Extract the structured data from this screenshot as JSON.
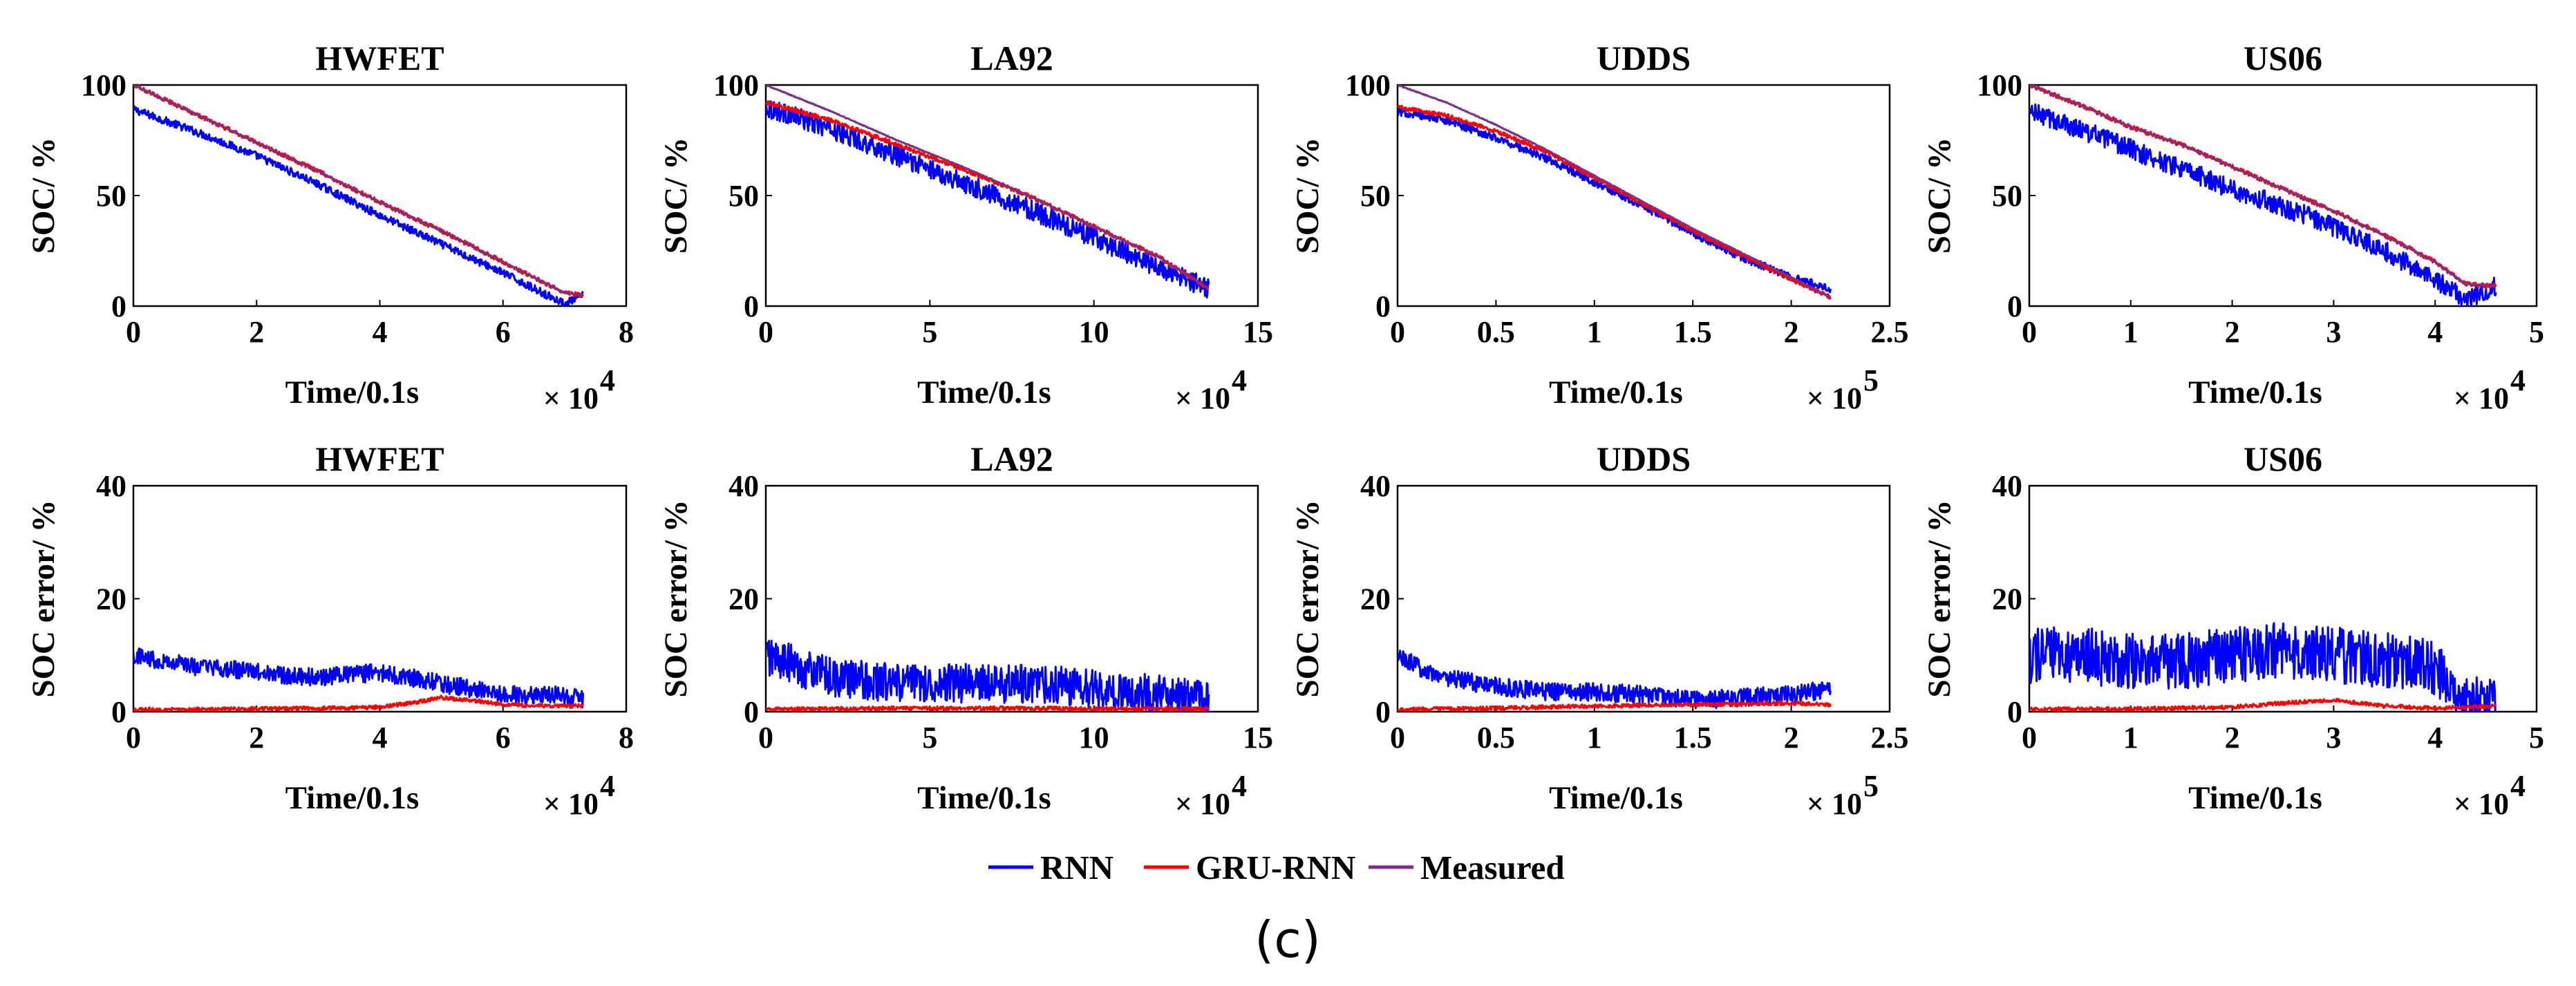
{
  "figure": {
    "caption": "(c)",
    "legend": [
      {
        "name": "RNN",
        "color": "#0000ff"
      },
      {
        "name": "GRU-RNN",
        "color": "#ff0000"
      },
      {
        "name": "Measured",
        "color": "#7e2f8e"
      }
    ]
  },
  "chart_data": [
    {
      "type": "line",
      "title": "HWFET",
      "xlabel": "Time/0.1s",
      "ylabel": "SOC/ %",
      "x_multiplier": "× 10",
      "x_exponent": "4",
      "xlim": [
        0,
        8
      ],
      "ylim": [
        0,
        100
      ],
      "xticks": [
        "0",
        "2",
        "4",
        "6",
        "8"
      ],
      "yticks": [
        "0",
        "50",
        "100"
      ],
      "series": [
        {
          "name": "Measured",
          "x": [
            0,
            1,
            2,
            3,
            4,
            5,
            6,
            7,
            7.3
          ],
          "y": [
            100,
            87,
            74,
            61,
            47,
            34,
            20,
            6,
            5
          ]
        },
        {
          "name": "GRU-RNN",
          "x": [
            0,
            1,
            2,
            3,
            4,
            5,
            6,
            7,
            7.3
          ],
          "y": [
            100,
            87,
            74,
            61,
            47,
            34,
            20,
            6,
            5
          ]
        },
        {
          "name": "RNN",
          "x": [
            0,
            1,
            2,
            3,
            4,
            5,
            6,
            7,
            7.3
          ],
          "y": [
            89,
            79,
            68,
            55,
            41,
            28,
            15,
            1,
            5
          ]
        }
      ]
    },
    {
      "type": "line",
      "title": "LA92",
      "xlabel": "Time/0.1s",
      "ylabel": "SOC/ %",
      "x_multiplier": "× 10",
      "x_exponent": "4",
      "xlim": [
        0,
        15
      ],
      "ylim": [
        0,
        100
      ],
      "xticks": [
        "0",
        "5",
        "10",
        "15"
      ],
      "yticks": [
        "0",
        "50",
        "100"
      ],
      "series": [
        {
          "name": "Measured",
          "x": [
            0,
            2,
            4,
            6,
            8,
            10,
            12,
            13.5
          ],
          "y": [
            100,
            88,
            75,
            63,
            50,
            36,
            22,
            8
          ]
        },
        {
          "name": "GRU-RNN",
          "x": [
            0,
            2,
            4,
            6,
            8,
            10,
            12,
            13.5
          ],
          "y": [
            92,
            84,
            73,
            62,
            50,
            36,
            22,
            8
          ]
        },
        {
          "name": "RNN",
          "x": [
            0,
            2,
            4,
            6,
            8,
            10,
            12,
            13.5
          ],
          "y": [
            90,
            80,
            68,
            56,
            44,
            31,
            17,
            8
          ]
        }
      ]
    },
    {
      "type": "line",
      "title": "UDDS",
      "xlabel": "Time/0.1s",
      "ylabel": "SOC/ %",
      "x_multiplier": "× 10",
      "x_exponent": "5",
      "xlim": [
        0,
        2.5
      ],
      "ylim": [
        0,
        100
      ],
      "xticks": [
        "0",
        "0.5",
        "1",
        "1.5",
        "2",
        "2.5"
      ],
      "yticks": [
        "0",
        "50",
        "100"
      ],
      "series": [
        {
          "name": "Measured",
          "x": [
            0,
            0.25,
            0.5,
            0.75,
            1,
            1.25,
            1.5,
            1.75,
            2,
            2.2
          ],
          "y": [
            100,
            92,
            82,
            71,
            59,
            47,
            35,
            24,
            13,
            4
          ]
        },
        {
          "name": "GRU-RNN",
          "x": [
            0,
            0.25,
            0.5,
            0.75,
            1,
            1.25,
            1.5,
            1.75,
            2,
            2.2
          ],
          "y": [
            90,
            86,
            79,
            70,
            58,
            46,
            34,
            23,
            12,
            4
          ]
        },
        {
          "name": "RNN",
          "x": [
            0,
            0.25,
            0.5,
            0.75,
            1,
            1.25,
            1.5,
            1.75,
            2,
            2.2
          ],
          "y": [
            88,
            84,
            76,
            67,
            56,
            45,
            33,
            22,
            13,
            8
          ]
        }
      ]
    },
    {
      "type": "line",
      "title": "US06",
      "xlabel": "Time/0.1s",
      "ylabel": "SOC/ %",
      "x_multiplier": "× 10",
      "x_exponent": "4",
      "xlim": [
        0,
        5
      ],
      "ylim": [
        0,
        100
      ],
      "xticks": [
        "0",
        "1",
        "2",
        "3",
        "4",
        "5"
      ],
      "yticks": [
        "0",
        "50",
        "100"
      ],
      "series": [
        {
          "name": "Measured",
          "x": [
            0,
            0.5,
            1,
            1.5,
            2,
            2.5,
            3,
            3.5,
            4,
            4.3,
            4.6
          ],
          "y": [
            100,
            91,
            81,
            73,
            63,
            53,
            43,
            32,
            20,
            10,
            9
          ]
        },
        {
          "name": "GRU-RNN",
          "x": [
            0,
            0.5,
            1,
            1.5,
            2,
            2.5,
            3,
            3.5,
            4,
            4.3,
            4.6
          ],
          "y": [
            100,
            91,
            81,
            73,
            63,
            53,
            43,
            32,
            20,
            10,
            9
          ]
        },
        {
          "name": "RNN",
          "x": [
            0,
            0.5,
            1,
            1.5,
            2,
            2.5,
            3,
            3.5,
            4,
            4.3,
            4.6
          ],
          "y": [
            88,
            80,
            71,
            62,
            53,
            45,
            36,
            25,
            12,
            3,
            9
          ]
        }
      ]
    },
    {
      "type": "line",
      "title": "HWFET",
      "xlabel": "Time/0.1s",
      "ylabel": "SOC error/ %",
      "x_multiplier": "× 10",
      "x_exponent": "4",
      "xlim": [
        0,
        8
      ],
      "ylim": [
        0,
        40
      ],
      "xticks": [
        "0",
        "2",
        "4",
        "6",
        "8"
      ],
      "yticks": [
        "0",
        "20",
        "40"
      ],
      "series": [
        {
          "name": "RNN",
          "x": [
            0,
            0.5,
            1,
            2,
            3,
            4,
            5,
            6,
            7,
            7.3
          ],
          "y": [
            10,
            9,
            8,
            7,
            6,
            7,
            5,
            3,
            3,
            2
          ]
        },
        {
          "name": "GRU-RNN",
          "x": [
            0,
            1,
            2,
            3,
            4,
            4.5,
            5,
            5.5,
            6,
            7,
            7.3
          ],
          "y": [
            0.4,
            0.4,
            0.5,
            0.6,
            0.8,
            1.5,
            2.5,
            2,
            1.2,
            1,
            1
          ]
        }
      ]
    },
    {
      "type": "line",
      "title": "LA92",
      "xlabel": "Time/0.1s",
      "ylabel": "SOC error/ %",
      "x_multiplier": "× 10",
      "x_exponent": "4",
      "xlim": [
        0,
        15
      ],
      "ylim": [
        0,
        40
      ],
      "xticks": [
        "0",
        "5",
        "10",
        "15"
      ],
      "yticks": [
        "0",
        "20",
        "40"
      ],
      "series": [
        {
          "name": "RNN",
          "x": [
            0,
            1,
            2,
            4,
            6,
            8,
            10,
            12,
            13.5
          ],
          "y": [
            10,
            8,
            6,
            5,
            5,
            5,
            4,
            3,
            2
          ]
        },
        {
          "name": "GRU-RNN",
          "x": [
            0,
            2,
            4,
            6,
            8,
            10,
            12,
            13.5
          ],
          "y": [
            0.4,
            0.5,
            0.6,
            0.6,
            0.6,
            0.5,
            0.5,
            0.5
          ]
        }
      ]
    },
    {
      "type": "line",
      "title": "UDDS",
      "xlabel": "Time/0.1s",
      "ylabel": "SOC error/ %",
      "x_multiplier": "× 10",
      "x_exponent": "5",
      "xlim": [
        0,
        2.5
      ],
      "ylim": [
        0,
        40
      ],
      "xticks": [
        "0",
        "0.5",
        "1",
        "1.5",
        "2",
        "2.5"
      ],
      "yticks": [
        "0",
        "20",
        "40"
      ],
      "series": [
        {
          "name": "RNN",
          "x": [
            0,
            0.1,
            0.25,
            0.5,
            0.75,
            1,
            1.25,
            1.5,
            1.75,
            2,
            2.2
          ],
          "y": [
            10,
            8,
            6,
            4.5,
            3.5,
            3.5,
            3,
            2,
            2.5,
            3,
            4
          ]
        },
        {
          "name": "GRU-RNN",
          "x": [
            0,
            0.5,
            1,
            1.5,
            2,
            2.2
          ],
          "y": [
            0.4,
            0.6,
            1,
            1.2,
            1.5,
            1.2
          ]
        }
      ]
    },
    {
      "type": "line",
      "title": "US06",
      "xlabel": "Time/0.1s",
      "ylabel": "SOC error/ %",
      "x_multiplier": "× 10",
      "x_exponent": "4",
      "xlim": [
        0,
        5
      ],
      "ylim": [
        0,
        40
      ],
      "xticks": [
        "0",
        "1",
        "2",
        "3",
        "4",
        "5"
      ],
      "yticks": [
        "0",
        "20",
        "40"
      ],
      "series": [
        {
          "name": "RNN",
          "x": [
            0,
            0.5,
            1,
            1.5,
            2,
            2.5,
            3,
            3.5,
            4,
            4.3,
            4.6
          ],
          "y": [
            10,
            10,
            9,
            9,
            10,
            11,
            10,
            9,
            8,
            1,
            1.5
          ]
        },
        {
          "name": "GRU-RNN",
          "x": [
            0,
            1,
            2,
            2.5,
            3,
            3.5,
            4,
            4.6
          ],
          "y": [
            0.4,
            0.5,
            0.8,
            1.5,
            2,
            1,
            0.6,
            1
          ]
        }
      ]
    }
  ]
}
